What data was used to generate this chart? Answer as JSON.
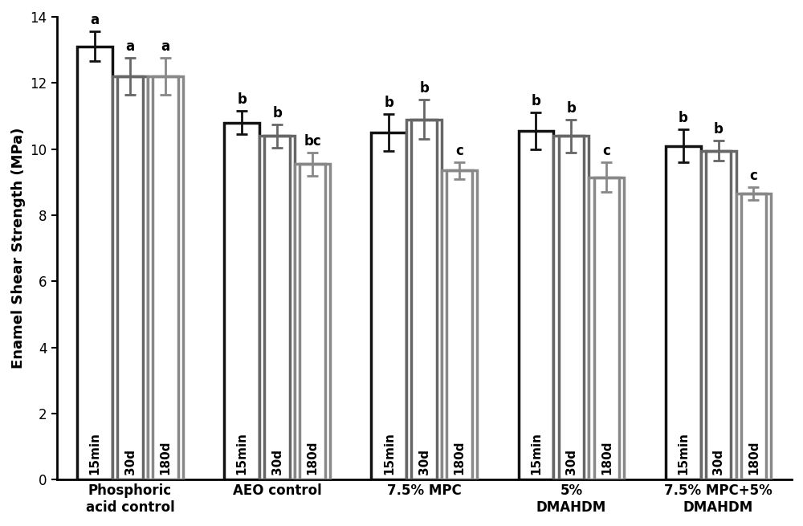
{
  "groups": [
    "Phosphoric\nacid control",
    "AEO control",
    "7.5% MPC",
    "5%\nDMAHDM",
    "7.5% MPC+5%\nDMAHDM"
  ],
  "subgroups": [
    "15min",
    "30d",
    "180d"
  ],
  "values": [
    [
      13.1,
      12.2,
      12.2
    ],
    [
      10.8,
      10.4,
      9.55
    ],
    [
      10.5,
      10.9,
      9.35
    ],
    [
      10.55,
      10.4,
      9.15
    ],
    [
      10.1,
      9.95,
      8.65
    ]
  ],
  "errors": [
    [
      0.45,
      0.55,
      0.55
    ],
    [
      0.35,
      0.35,
      0.35
    ],
    [
      0.55,
      0.6,
      0.25
    ],
    [
      0.55,
      0.5,
      0.45
    ],
    [
      0.5,
      0.3,
      0.2
    ]
  ],
  "significance": [
    [
      "a",
      "a",
      "a"
    ],
    [
      "b",
      "b",
      "bc"
    ],
    [
      "b",
      "b",
      "c"
    ],
    [
      "b",
      "b",
      "c"
    ],
    [
      "b",
      "b",
      "c"
    ]
  ],
  "bar_edge_colors": [
    "#111111",
    "#666666",
    "#888888"
  ],
  "ylabel": "Enamel Shear Strength (MPa)",
  "ylim": [
    0,
    14
  ],
  "yticks": [
    0,
    2,
    4,
    6,
    8,
    10,
    12,
    14
  ],
  "bar_width": 0.24,
  "tick_label_fontsize": 12,
  "ylabel_fontsize": 13,
  "sig_fontsize": 12,
  "sublabel_fontsize": 11
}
